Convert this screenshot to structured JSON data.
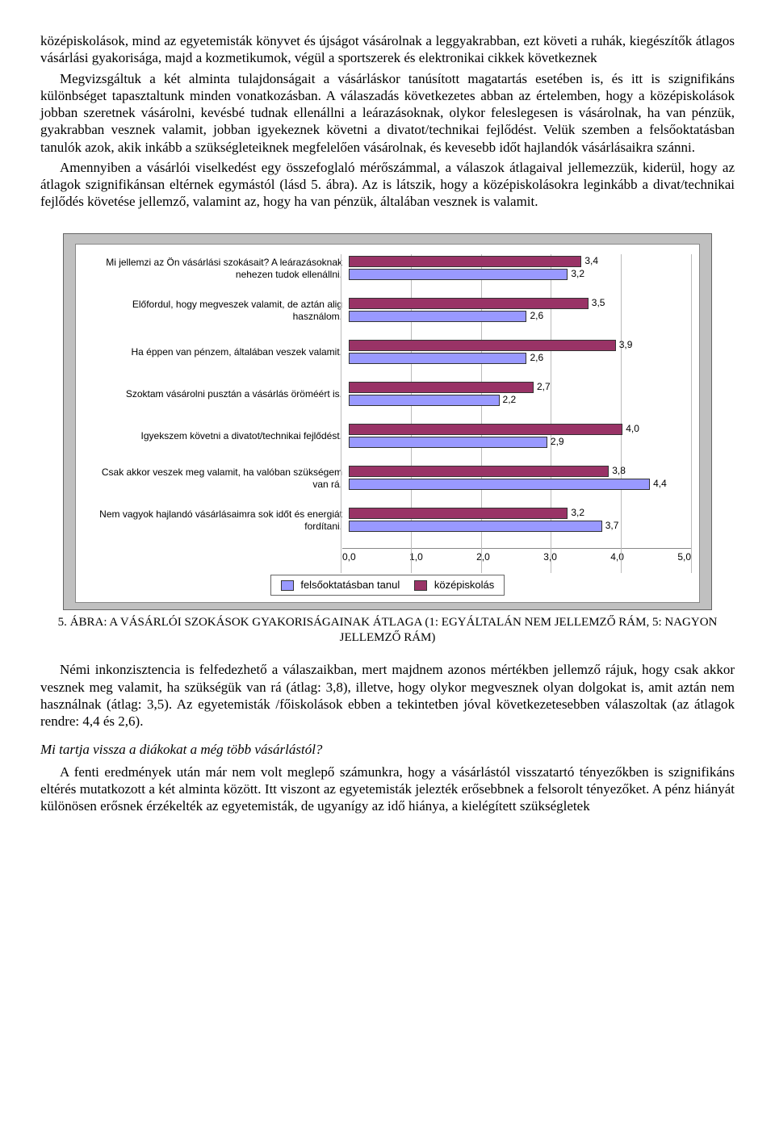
{
  "paragraphs": {
    "p1": "középiskolások, mind az egyetemisták könyvet és újságot vásárolnak a leggyakrabban, ezt követi a ruhák, kiegészítők átlagos vásárlási gyakorisága, majd a kozmetikumok, végül a sportszerek és elektronikai cikkek következnek",
    "p2": "Megvizsgáltuk a két alminta tulajdonságait a vásárláskor tanúsított magatartás esetében is, és itt is szignifikáns különbséget tapasztaltunk minden vonatkozásban. A válaszadás következetes abban az értelemben, hogy a középiskolások jobban szeretnek vásárolni, kevésbé tudnak ellenállni a leárazásoknak, olykor feleslegesen is vásárolnak, ha van pénzük, gyakrabban vesznek valamit, jobban igyekeznek követni a divatot/technikai fejlődést. Velük szemben a felsőoktatásban tanulók azok, akik inkább a szükségleteiknek megfelelően vásárolnak, és kevesebb időt hajlandók vásárlásaikra szánni.",
    "p3": "Amennyiben a vásárlói viselkedést egy összefoglaló mérőszámmal, a válaszok átlagaival jellemezzük, kiderül, hogy az átlagok szignifikánsan eltérnek egymástól (lásd 5. ábra). Az is látszik, hogy a középiskolásokra leginkább a divat/technikai fejlődés követése jellemző, valamint az, hogy ha van pénzük, általában vesznek is valamit.",
    "p4": "Némi inkonzisztencia is felfedezhető a válaszaikban, mert majdnem azonos mértékben jellemző rájuk, hogy csak akkor vesznek meg valamit, ha szükségük van rá (átlag: 3,8), illetve, hogy olykor megvesznek olyan dolgokat is, amit aztán nem használnak (átlag: 3,5). Az egyetemisták /főiskolások ebben a tekintetben jóval következetesebben válaszoltak (az átlagok rendre: 4,4 és 2,6).",
    "p5": "A fenti eredmények után már nem volt meglepő számunkra, hogy a vásárlástól visszatartó tényezőkben is szignifikáns eltérés mutatkozott a két alminta között. Itt viszont az egyetemisták jelezték erősebbnek a felsorolt tényezőket. A pénz hiányát különösen erősnek érzékelték az egyetemisták, de ugyanígy az idő hiánya, a kielégített szükségletek"
  },
  "heading": "Mi tartja vissza a diákokat a még több vásárlástól?",
  "caption_prefix": "5. ",
  "caption_word": "ÁBRA",
  "caption_rest": ": A VÁSÁRLÓI SZOKÁSOK GYAKORISÁGAINAK ÁTLAGA (1: EGYÁLTALÁN NEM JELLEMZŐ RÁM, 5: NAGYON JELLEMZŐ RÁM)",
  "legend": {
    "series1": "felsőoktatásban tanul",
    "series2": "középiskolás"
  },
  "chart": {
    "type": "bar-horizontal-grouped",
    "xlim": [
      0,
      5
    ],
    "xtick_step": 1.0,
    "xtick_labels": [
      "0,0",
      "1,0",
      "2,0",
      "3,0",
      "4,0",
      "5,0"
    ],
    "grid_color": "#bbbbbb",
    "plot_bg": "#c0c0c0",
    "panel_bg": "#ffffff",
    "series_colors": {
      "felso": "#9999ff",
      "kozep": "#993366"
    },
    "label_fontsize": 12,
    "value_fontsize": 12,
    "items": [
      {
        "label": "Mi jellemzi az Ön vásárlási szokásait? A leárazásoknak nehezen tudok ellenállni.",
        "kozep": 3.4,
        "kozep_label": "3,4",
        "felso": 3.2,
        "felso_label": "3,2"
      },
      {
        "label": "Előfordul, hogy megveszek valamit, de aztán alig használom.",
        "kozep": 3.5,
        "kozep_label": "3,5",
        "felso": 2.6,
        "felso_label": "2,6"
      },
      {
        "label": "Ha éppen van pénzem, általában veszek valamit.",
        "kozep": 3.9,
        "kozep_label": "3,9",
        "felso": 2.6,
        "felso_label": "2,6"
      },
      {
        "label": "Szoktam vásárolni pusztán a vásárlás öröméért is.",
        "kozep": 2.7,
        "kozep_label": "2,7",
        "felso": 2.2,
        "felso_label": "2,2"
      },
      {
        "label": "Igyekszem követni a divatot/technikai fejlődést.",
        "kozep": 4.0,
        "kozep_label": "4,0",
        "felso": 2.9,
        "felso_label": "2,9"
      },
      {
        "label": "Csak akkor veszek meg valamit, ha valóban szükségem van rá.",
        "kozep": 3.8,
        "kozep_label": "3,8",
        "felso": 4.4,
        "felso_label": "4,4"
      },
      {
        "label": "Nem vagyok hajlandó vásárlásaimra sok időt és energiát fordítani.",
        "kozep": 3.2,
        "kozep_label": "3,2",
        "felso": 3.7,
        "felso_label": "3,7"
      }
    ]
  }
}
